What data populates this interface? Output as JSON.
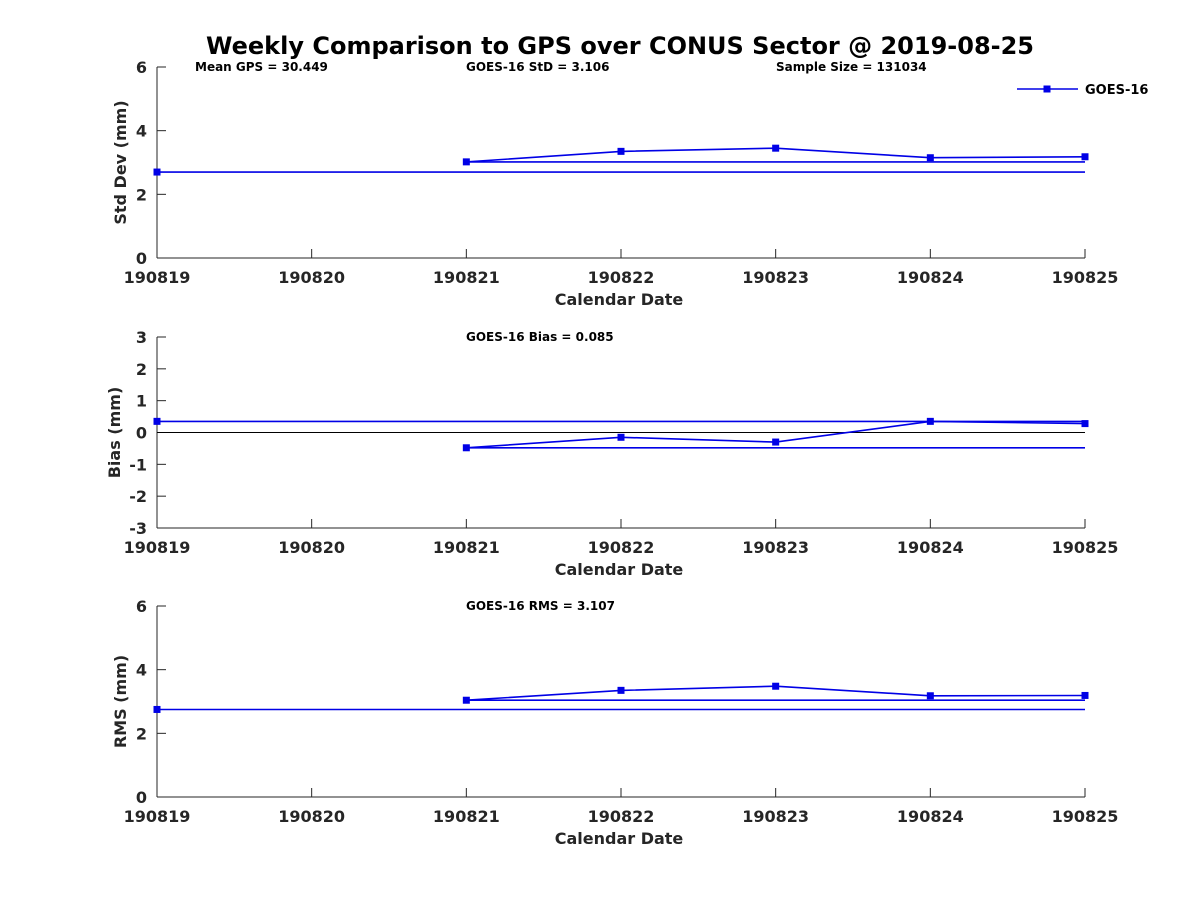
{
  "figure": {
    "title": "Weekly Comparison to GPS over CONUS Sector @ 2019-08-25",
    "series_color": "#0000E6",
    "axis_color": "#262626"
  },
  "chart_data": [
    {
      "type": "line",
      "id": "std",
      "title": "Weekly Comparison to GPS over CONUS Sector @ 2019-08-25",
      "xlabel": "Calendar Date",
      "ylabel": "Std Dev (mm)",
      "categories": [
        "190819",
        "190820",
        "190821",
        "190822",
        "190823",
        "190824",
        "190825"
      ],
      "ylim": [
        0,
        6
      ],
      "yticks": [
        "0",
        "2",
        "4",
        "6"
      ],
      "annotations": [
        "Mean GPS = 30.449",
        "GOES-16 StD = 3.106",
        "Sample Size = 131034"
      ],
      "legend": {
        "label": "GOES-16",
        "position": "top-right"
      },
      "series": [
        {
          "name": "GOES-16",
          "x": [
            2,
            3,
            4,
            5,
            6
          ],
          "values": [
            3.02,
            3.35,
            3.45,
            3.15,
            3.18
          ],
          "markers": true
        },
        {
          "name": "reference-1",
          "x": [
            0,
            6
          ],
          "values": [
            2.7,
            2.7
          ],
          "markers": false,
          "marker_at_start": true
        },
        {
          "name": "reference-2",
          "x": [
            2,
            6
          ],
          "values": [
            3.02,
            3.02
          ],
          "markers": false
        }
      ],
      "zero_line": false
    },
    {
      "type": "line",
      "id": "bias",
      "xlabel": "Calendar Date",
      "ylabel": "Bias (mm)",
      "categories": [
        "190819",
        "190820",
        "190821",
        "190822",
        "190823",
        "190824",
        "190825"
      ],
      "ylim": [
        -3,
        3
      ],
      "yticks": [
        "-3",
        "-2",
        "-1",
        "0",
        "1",
        "2",
        "3"
      ],
      "annotations": [
        "GOES-16 Bias  = 0.085"
      ],
      "series": [
        {
          "name": "GOES-16",
          "x": [
            2,
            3,
            4,
            5,
            6
          ],
          "values": [
            -0.48,
            -0.15,
            -0.3,
            0.35,
            0.28
          ],
          "markers": true
        },
        {
          "name": "reference-1",
          "x": [
            0,
            6
          ],
          "values": [
            0.35,
            0.35
          ],
          "markers": false,
          "marker_at_start": true
        },
        {
          "name": "reference-2",
          "x": [
            2,
            6
          ],
          "values": [
            -0.48,
            -0.48
          ],
          "markers": false
        }
      ],
      "zero_line": true
    },
    {
      "type": "line",
      "id": "rms",
      "xlabel": "Calendar Date",
      "ylabel": "RMS (mm)",
      "categories": [
        "190819",
        "190820",
        "190821",
        "190822",
        "190823",
        "190824",
        "190825"
      ],
      "ylim": [
        0,
        6
      ],
      "yticks": [
        "0",
        "2",
        "4",
        "6"
      ],
      "annotations": [
        "GOES-16 RMS = 3.107"
      ],
      "series": [
        {
          "name": "GOES-16",
          "x": [
            2,
            3,
            4,
            5,
            6
          ],
          "values": [
            3.04,
            3.35,
            3.48,
            3.18,
            3.19
          ],
          "markers": true
        },
        {
          "name": "reference-1",
          "x": [
            0,
            6
          ],
          "values": [
            2.75,
            2.75
          ],
          "markers": false,
          "marker_at_start": true
        },
        {
          "name": "reference-2",
          "x": [
            2,
            6
          ],
          "values": [
            3.04,
            3.04
          ],
          "markers": false
        }
      ],
      "zero_line": false
    }
  ]
}
